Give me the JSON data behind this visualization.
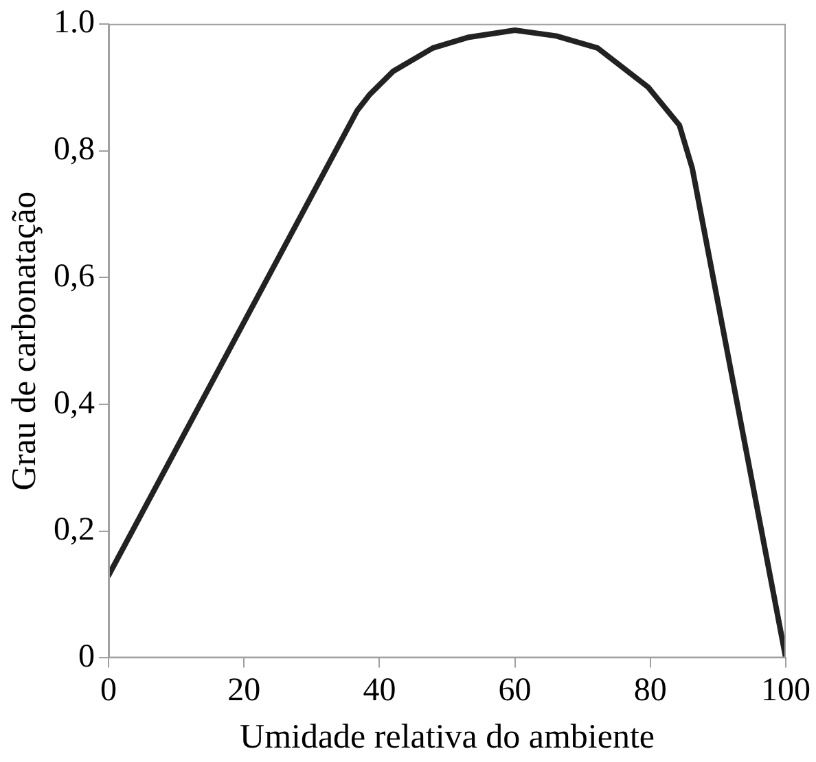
{
  "chart_data": {
    "type": "line",
    "xlabel": "Umidade relativa do ambiente",
    "ylabel": "Grau de carbonatação",
    "x": [
      0,
      36.7,
      38.6,
      42,
      47.9,
      53.2,
      60,
      66.1,
      72.2,
      79.7,
      84.3,
      86.2,
      100
    ],
    "series": [
      {
        "color": "#222222",
        "values": [
          0.13,
          0.863,
          0.889,
          0.925,
          0.962,
          0.979,
          0.99,
          0.981,
          0.962,
          0.9,
          0.84,
          0.772,
          0
        ]
      }
    ],
    "xlim": [
      0,
      100
    ],
    "xticks": [
      0,
      20,
      40,
      60,
      80,
      100
    ],
    "ylim": [
      0,
      1
    ],
    "yticks": [
      0,
      {
        "value": 0.2,
        "label": "0,2"
      },
      {
        "value": 0.4,
        "label": "0,4"
      },
      {
        "value": 0.6,
        "label": "0,6"
      },
      {
        "value": 0.8,
        "label": "0,8"
      },
      {
        "value": 1,
        "label": "1.0"
      }
    ],
    "grid": false,
    "legend": false,
    "marker": "none",
    "line_style": "solid"
  }
}
